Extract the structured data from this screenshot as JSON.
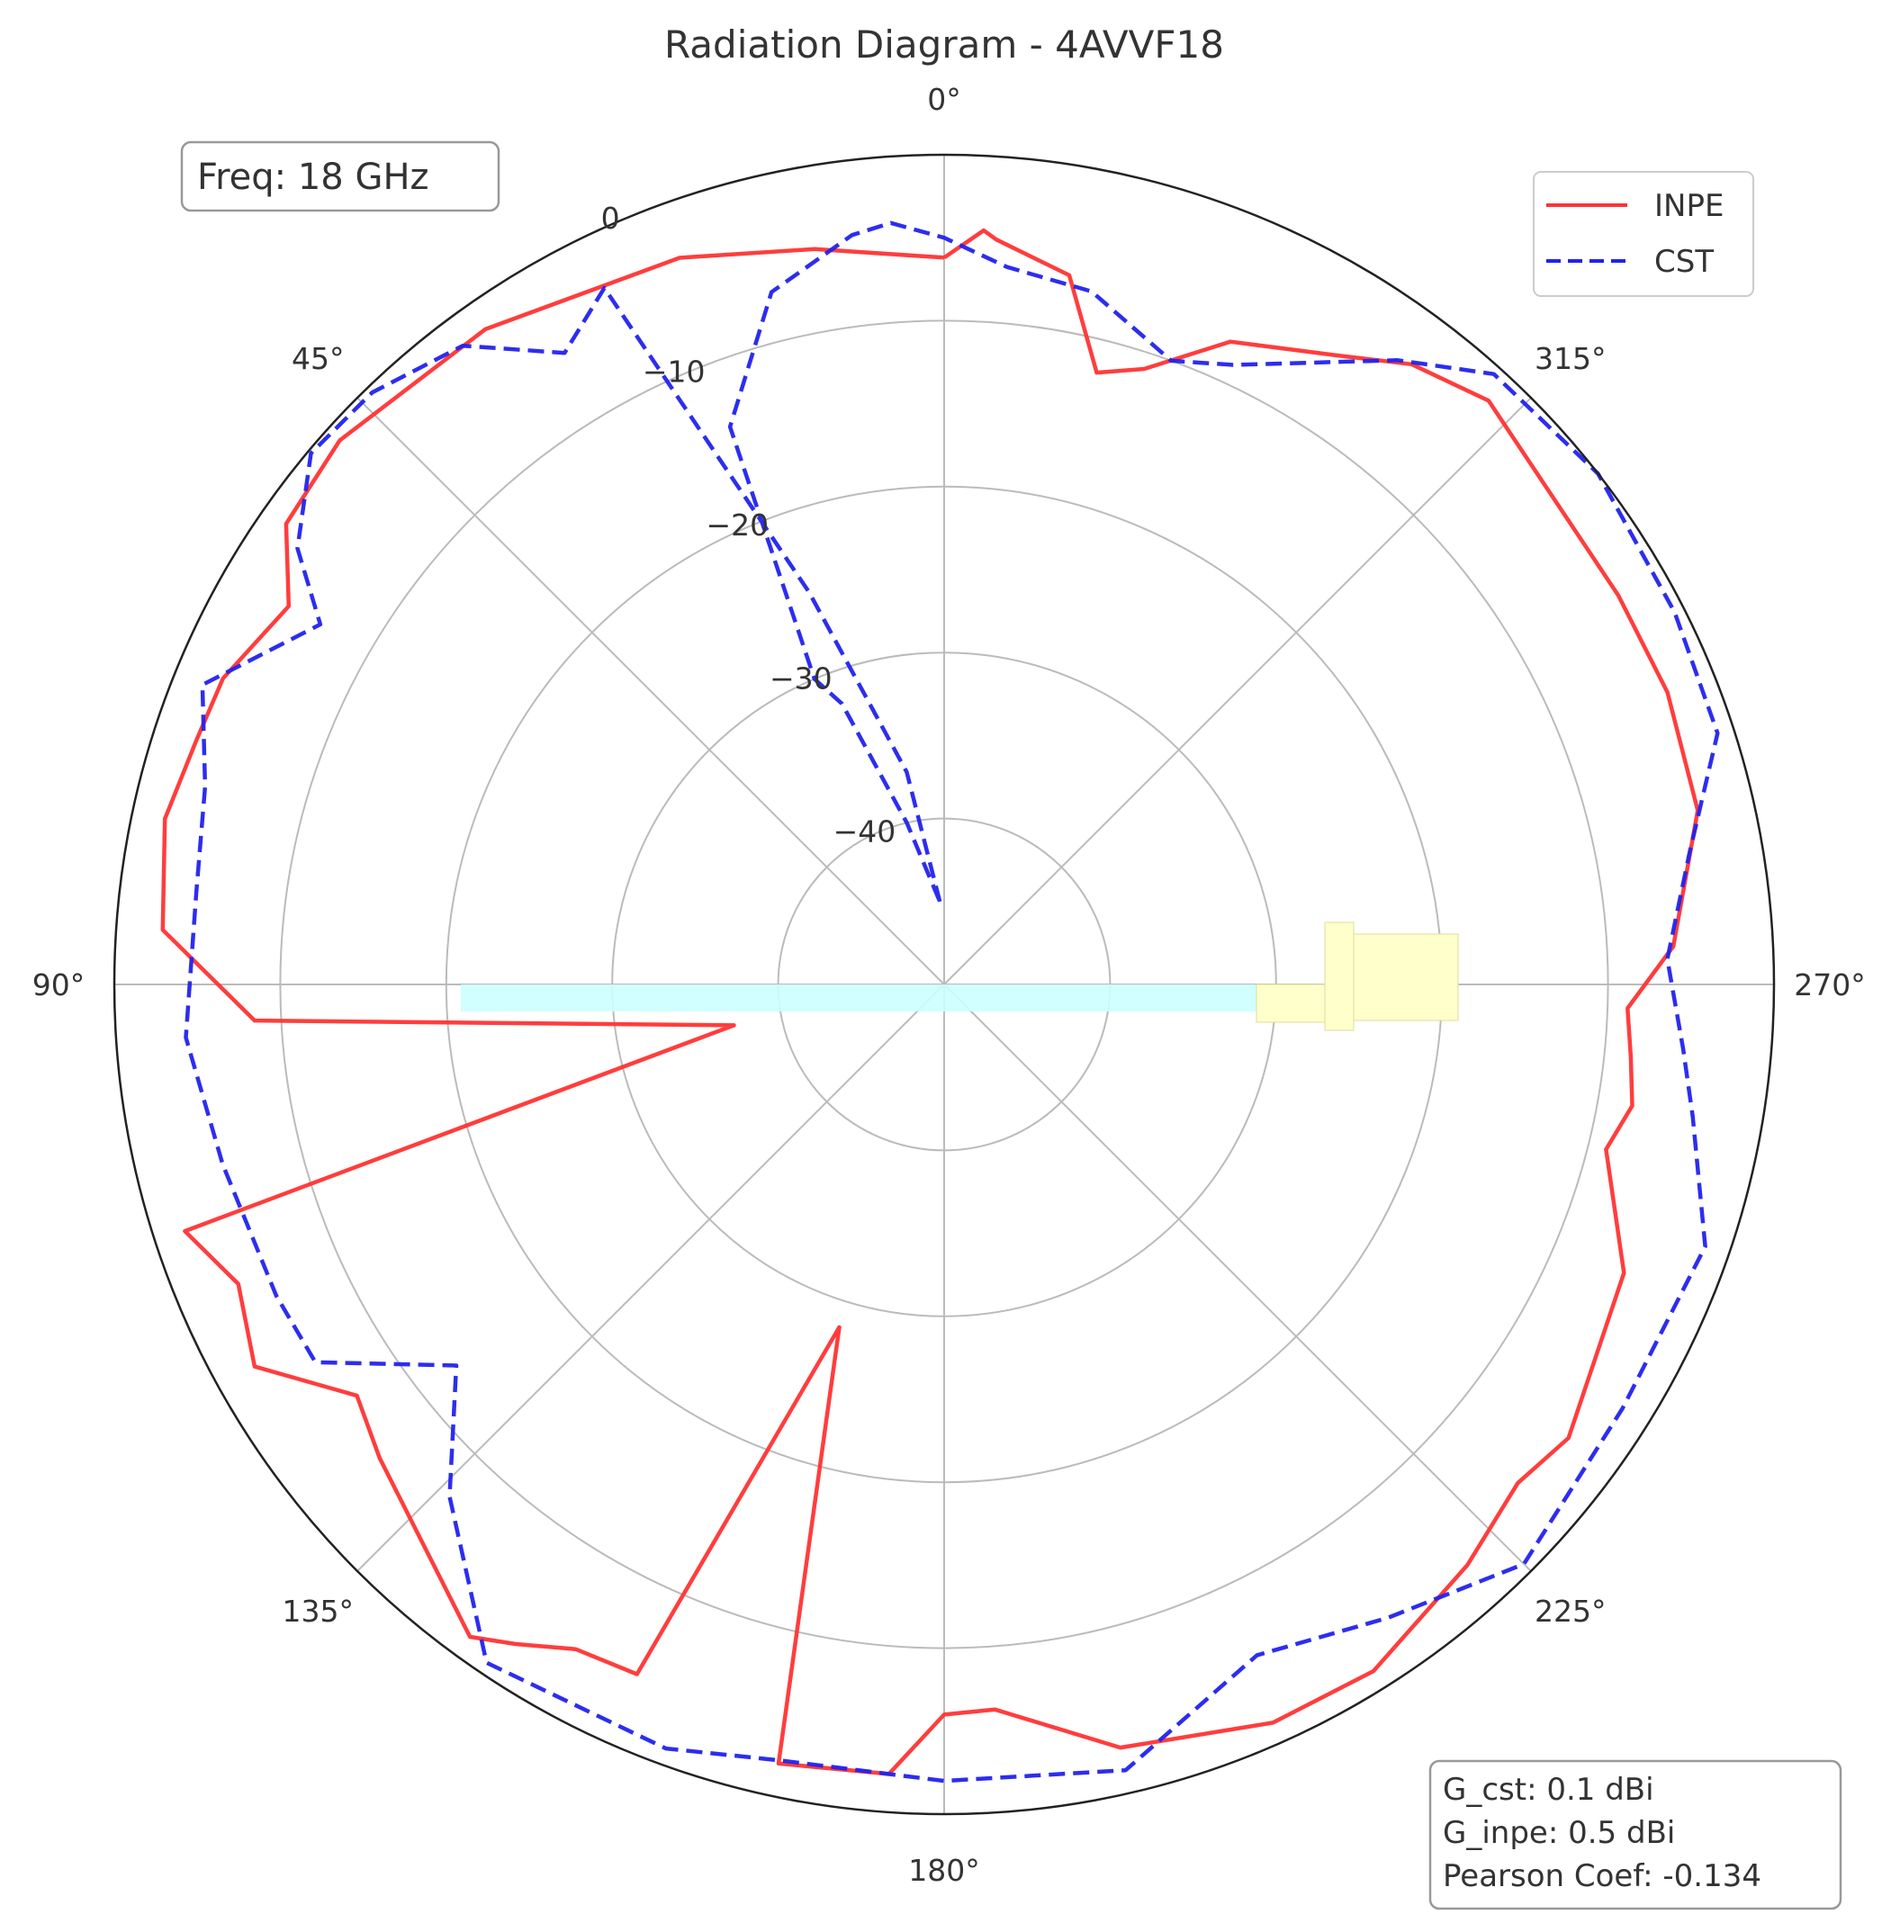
{
  "chart_data": {
    "type": "polar-line",
    "title": "Radiation Diagram - 4AVVF18",
    "theta_zero": "top",
    "theta_direction": "counterclockwise",
    "r_range": [
      -50,
      0
    ],
    "r_ticks": [
      {
        "value": 0,
        "label": "0"
      },
      {
        "value": -10,
        "label": "−10"
      },
      {
        "value": -20,
        "label": "−20"
      },
      {
        "value": -30,
        "label": "−30"
      },
      {
        "value": -40,
        "label": "−40"
      }
    ],
    "angle_ticks": [
      {
        "deg": 0,
        "label": "0°"
      },
      {
        "deg": 45,
        "label": "45°"
      },
      {
        "deg": 90,
        "label": "90°"
      },
      {
        "deg": 135,
        "label": "135°"
      },
      {
        "deg": 180,
        "label": "180°"
      },
      {
        "deg": 225,
        "label": "225°"
      },
      {
        "deg": 270,
        "label": "270°"
      },
      {
        "deg": 315,
        "label": "315°"
      }
    ],
    "grid": true,
    "legend_position": "top-right",
    "series": [
      {
        "name": "INPE",
        "color": "#ff3333",
        "dash": "solid",
        "points": [
          [
            0,
            -6.2
          ],
          [
            10,
            -5.0
          ],
          [
            20,
            -3.4
          ],
          [
            35,
            -1.8
          ],
          [
            48,
            -1.0
          ],
          [
            55,
            -1.6
          ],
          [
            60,
            -4.4
          ],
          [
            67,
            -2.8
          ],
          [
            72,
            -2.6
          ],
          [
            78,
            -2.0
          ],
          [
            86,
            -2.8
          ],
          [
            93,
            -8.4
          ],
          [
            101,
            -37.1
          ],
          [
            108,
            -1.9
          ],
          [
            113,
            -3.8
          ],
          [
            119,
            -2.5
          ],
          [
            125,
            -6.8
          ],
          [
            130,
            -5.6
          ],
          [
            144,
            -1.4
          ],
          [
            147,
            -2.6
          ],
          [
            151,
            -4.2
          ],
          [
            156,
            -4.5
          ],
          [
            163,
            -28.4
          ],
          [
            168,
            -2.0
          ],
          [
            176,
            -2.3
          ],
          [
            180,
            -6.0
          ],
          [
            184,
            -6.2
          ],
          [
            193,
            -2.8
          ],
          [
            204,
            -1.3
          ],
          [
            212,
            -1.2
          ],
          [
            222,
            -2.9
          ],
          [
            229,
            -4.2
          ],
          [
            234,
            -3.5
          ],
          [
            247,
            -5.5
          ],
          [
            256,
            -8.9
          ],
          [
            260,
            -7.9
          ],
          [
            264,
            -8.4
          ],
          [
            268,
            -8.8
          ],
          [
            273,
            -6.0
          ],
          [
            283,
            -3.4
          ],
          [
            292,
            -3.0
          ],
          [
            300,
            -3.1
          ],
          [
            317,
            -1.9
          ],
          [
            323,
            -3.2
          ],
          [
            328,
            -5.3
          ],
          [
            336,
            -7.6
          ],
          [
            342,
            -11.0
          ],
          [
            346,
            -12.0
          ],
          [
            350,
            -6.6
          ],
          [
            356,
            -5.0
          ],
          [
            357,
            -4.5
          ],
          [
            0,
            -6.2
          ]
        ]
      },
      {
        "name": "CST",
        "color": "#2222ee",
        "dash": "dashed",
        "points": [
          [
            3,
            -45.0
          ],
          [
            10,
            -37.0
          ],
          [
            19,
            -25.0
          ],
          [
            26,
            -3.3
          ],
          [
            31,
            -5.6
          ],
          [
            37,
            -1.8
          ],
          [
            44,
            -0.4
          ],
          [
            50,
            -0.2
          ],
          [
            56,
            -3.0
          ],
          [
            60,
            -6.6
          ],
          [
            68,
            -1.8
          ],
          [
            75,
            -3.9
          ],
          [
            83,
            -4.6
          ],
          [
            94,
            -4.2
          ],
          [
            104,
            -5.2
          ],
          [
            115,
            -5.6
          ],
          [
            121,
            -5.8
          ],
          [
            128,
            -12.7
          ],
          [
            136,
            -7.1
          ],
          [
            146,
            -0.7
          ],
          [
            160,
            -1.0
          ],
          [
            168,
            -2.2
          ],
          [
            180,
            -2.0
          ],
          [
            193,
            -1.4
          ],
          [
            205,
            -5.4
          ],
          [
            215,
            -3.4
          ],
          [
            225,
            -0.6
          ],
          [
            238,
            -1.8
          ],
          [
            251,
            -1.5
          ],
          [
            260,
            -4.2
          ],
          [
            265,
            -5.3
          ],
          [
            272,
            -6.4
          ],
          [
            280,
            -4.4
          ],
          [
            288,
            -1.0
          ],
          [
            297,
            -0.6
          ],
          [
            308,
            0.0
          ],
          [
            318,
            -0.5
          ],
          [
            324,
            -3.5
          ],
          [
            335,
            -8.8
          ],
          [
            340,
            -10.0
          ],
          [
            348,
            -7.3
          ],
          [
            355,
            -6.6
          ],
          [
            0,
            -5.0
          ],
          [
            4,
            -4.0
          ],
          [
            7,
            -4.5
          ],
          [
            14,
            -7.0
          ],
          [
            21,
            -14.0
          ],
          [
            23,
            -30.0
          ],
          [
            20,
            -32.0
          ],
          [
            13,
            -40.0
          ],
          [
            3,
            -45.0
          ]
        ]
      }
    ],
    "annotations": {
      "freq": "Freq: 18 GHz",
      "stats": [
        "G_cst: 0.1 dBi",
        "G_inpe: 0.5 dBi",
        "Pearson Coef: -0.134"
      ]
    }
  },
  "icons": {
    "antenna": "antenna-silhouette-icon",
    "antenna_colors": {
      "boom": "#ccffff",
      "body": "#ffffcc"
    }
  }
}
